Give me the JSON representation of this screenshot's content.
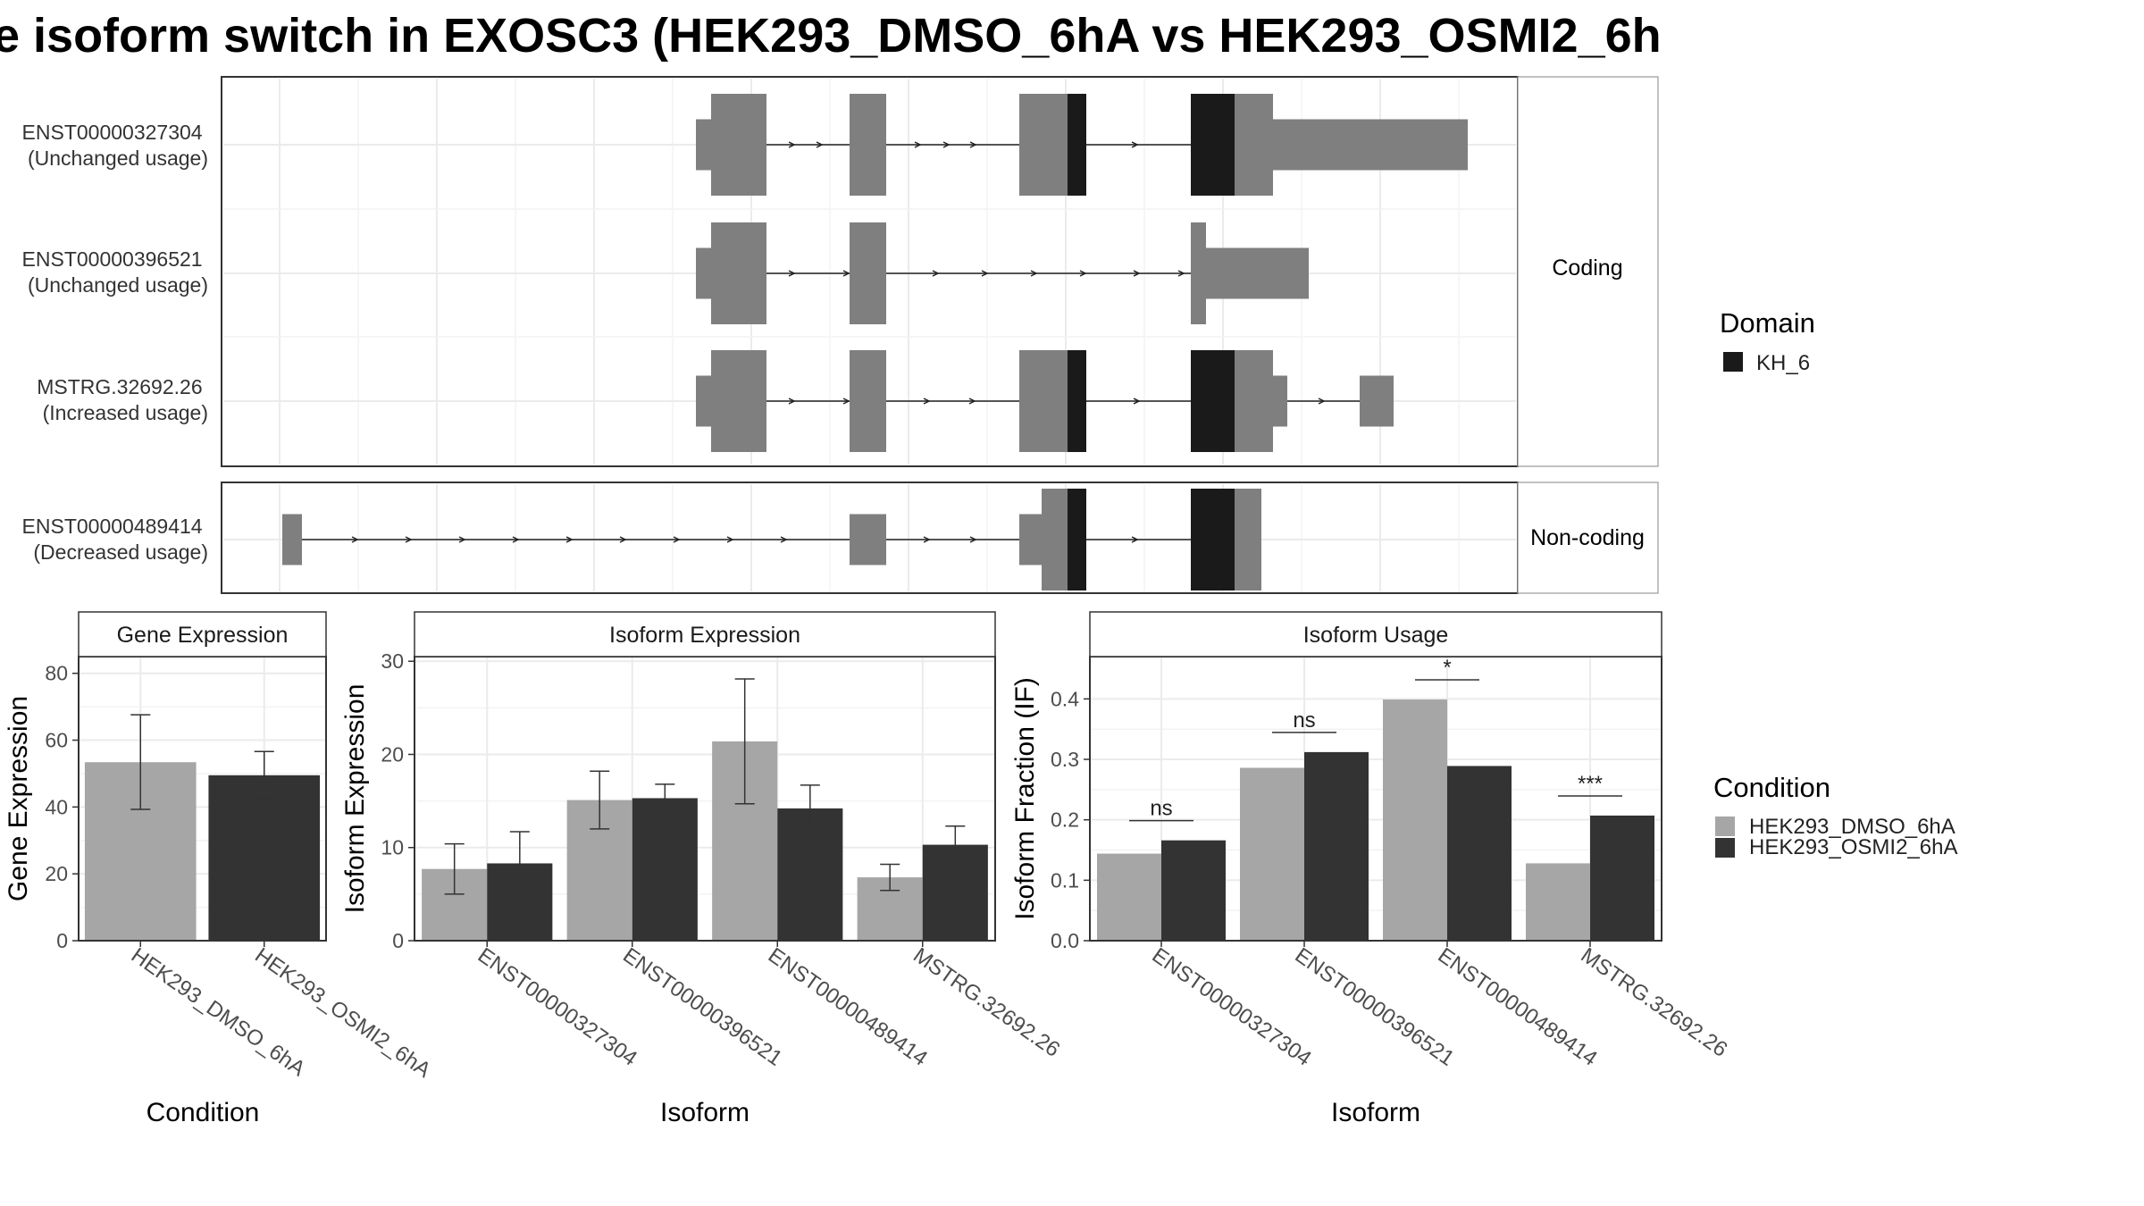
{
  "title": "e isoform switch in EXOSC3 (HEK293_DMSO_6hA vs HEK293_OSMI2_6h",
  "colors": {
    "exon": "#7f7f7f",
    "domain": "#1a1a1a",
    "dmso": "#a6a6a6",
    "osmi": "#333333",
    "grid": "#ebebeb",
    "strip": "#ffffff"
  },
  "structure": {
    "facets": [
      {
        "label": "Coding",
        "transcripts": [
          {
            "id": "ENST00000327304",
            "usage": "(Unchanged usage)"
          },
          {
            "id": "ENST00000396521",
            "usage": "(Unchanged usage)"
          },
          {
            "id": "MSTRG.32692.26",
            "usage": "(Increased usage)"
          }
        ]
      },
      {
        "label": "Non-coding",
        "transcripts": [
          {
            "id": "ENST00000489414",
            "usage": "(Decreased usage)"
          }
        ]
      }
    ],
    "legend": {
      "title": "Domain",
      "items": [
        "KH_6"
      ]
    }
  },
  "chart_data": [
    {
      "type": "bar",
      "title": "Gene Expression",
      "xlabel": "Condition",
      "ylabel": "Gene Expression",
      "ylim": [
        0,
        85
      ],
      "yticks": [
        0,
        20,
        40,
        60,
        80
      ],
      "categories": [
        "HEK293_DMSO_6hA",
        "HEK293_OSMI2_6hA"
      ],
      "values": [
        53.4,
        49.5
      ],
      "err_low": [
        39.3,
        42.5
      ],
      "err_high": [
        67.6,
        56.6
      ]
    },
    {
      "type": "bar",
      "title": "Isoform Expression",
      "xlabel": "Isoform",
      "ylabel": "Isoform Expression",
      "ylim": [
        0,
        30.5
      ],
      "yticks": [
        0,
        10,
        20,
        30
      ],
      "categories": [
        "ENST00000327304",
        "ENST00000396521",
        "ENST00000489414",
        "MSTRG.32692.26"
      ],
      "series": [
        {
          "name": "HEK293_DMSO_6hA",
          "values": [
            7.7,
            15.1,
            21.4,
            6.8
          ],
          "err_low": [
            5.0,
            12.0,
            14.7,
            5.4
          ],
          "err_high": [
            10.4,
            18.2,
            28.1,
            8.2
          ]
        },
        {
          "name": "HEK293_OSMI2_6hA",
          "values": [
            8.3,
            15.3,
            14.2,
            10.3
          ],
          "err_low": [
            4.9,
            13.8,
            11.7,
            8.3
          ],
          "err_high": [
            11.7,
            16.8,
            16.7,
            12.3
          ]
        }
      ]
    },
    {
      "type": "bar",
      "title": "Isoform Usage",
      "xlabel": "Isoform",
      "ylabel": "Isoform Fraction (IF)",
      "ylim": [
        0,
        0.47
      ],
      "yticks": [
        0.0,
        0.1,
        0.2,
        0.3,
        0.4
      ],
      "ytick_labels": [
        "0.0",
        "0.1",
        "0.2",
        "0.3",
        "0.4"
      ],
      "categories": [
        "ENST00000327304",
        "ENST00000396521",
        "ENST00000489414",
        "MSTRG.32692.26"
      ],
      "series": [
        {
          "name": "HEK293_DMSO_6hA",
          "values": [
            0.144,
            0.286,
            0.399,
            0.128
          ]
        },
        {
          "name": "HEK293_OSMI2_6hA",
          "values": [
            0.166,
            0.312,
            0.289,
            0.207
          ]
        }
      ],
      "significance": [
        "ns",
        "ns",
        "*",
        "***"
      ]
    }
  ],
  "condition_legend": {
    "title": "Condition",
    "items": [
      "HEK293_DMSO_6hA",
      "HEK293_OSMI2_6hA"
    ]
  }
}
